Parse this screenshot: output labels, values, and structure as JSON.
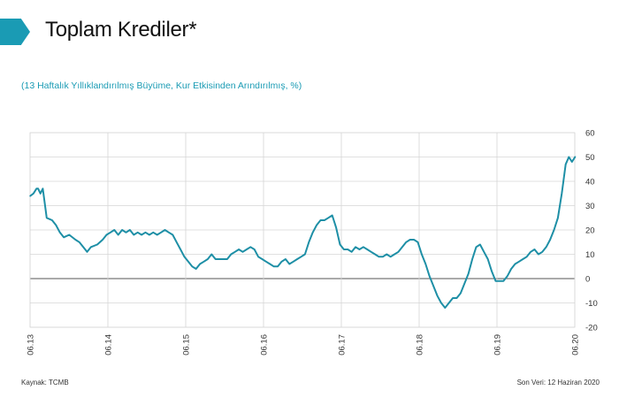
{
  "header": {
    "title": "Toplam Krediler*",
    "subtitle": "(13 Haftalık Yıllıklandırılmış Büyüme, Kur Etkisinden Arındırılmış, %)"
  },
  "footer": {
    "source": "Kaynak: TCMB",
    "last_data": "Son Veri: 12 Haziran 2020"
  },
  "colors": {
    "accent": "#1a9bb4",
    "line": "#1e8fa6",
    "grid": "#d6d6d6"
  },
  "chart_data": {
    "type": "line",
    "title": "Toplam Krediler*",
    "subtitle": "(13 Haftalık Yıllıklandırılmış Büyüme, Kur Etkisinden Arındırılmış, %)",
    "xlabel": "",
    "ylabel": "",
    "ylim": [
      -20,
      60
    ],
    "yticks": [
      60,
      50,
      40,
      30,
      20,
      10,
      0,
      -10,
      -20
    ],
    "y_axis_position": "right",
    "xlim": [
      2013.4167,
      2020.4167
    ],
    "xticks": [
      {
        "label": "06.13",
        "x": 2013.4167
      },
      {
        "label": "06.14",
        "x": 2014.4167
      },
      {
        "label": "06.15",
        "x": 2015.4167
      },
      {
        "label": "06.16",
        "x": 2016.4167
      },
      {
        "label": "06.17",
        "x": 2017.4167
      },
      {
        "label": "06.18",
        "x": 2018.4167
      },
      {
        "label": "06.19",
        "x": 2019.4167
      },
      {
        "label": "06.20",
        "x": 2020.4167
      }
    ],
    "grid": true,
    "legend": "none",
    "series": [
      {
        "name": "Toplam Krediler",
        "x": [
          2013.42,
          2013.46,
          2013.5,
          2013.52,
          2013.55,
          2013.58,
          2013.63,
          2013.7,
          2013.75,
          2013.8,
          2013.85,
          2013.92,
          2014.0,
          2014.05,
          2014.1,
          2014.15,
          2014.2,
          2014.28,
          2014.35,
          2014.4,
          2014.45,
          2014.5,
          2014.55,
          2014.6,
          2014.65,
          2014.7,
          2014.75,
          2014.8,
          2014.85,
          2014.9,
          2014.95,
          2015.0,
          2015.05,
          2015.1,
          2015.15,
          2015.2,
          2015.25,
          2015.3,
          2015.35,
          2015.4,
          2015.45,
          2015.5,
          2015.55,
          2015.6,
          2015.65,
          2015.7,
          2015.75,
          2015.8,
          2015.85,
          2015.9,
          2015.95,
          2016.0,
          2016.05,
          2016.1,
          2016.15,
          2016.2,
          2016.25,
          2016.3,
          2016.35,
          2016.4,
          2016.45,
          2016.5,
          2016.55,
          2016.6,
          2016.65,
          2016.7,
          2016.75,
          2016.8,
          2016.85,
          2016.9,
          2016.95,
          2017.0,
          2017.05,
          2017.1,
          2017.15,
          2017.2,
          2017.25,
          2017.3,
          2017.35,
          2017.4,
          2017.45,
          2017.5,
          2017.55,
          2017.6,
          2017.65,
          2017.7,
          2017.75,
          2017.8,
          2017.85,
          2017.9,
          2017.95,
          2018.0,
          2018.05,
          2018.1,
          2018.15,
          2018.2,
          2018.25,
          2018.3,
          2018.35,
          2018.4,
          2018.45,
          2018.5,
          2018.55,
          2018.6,
          2018.65,
          2018.7,
          2018.75,
          2018.8,
          2018.85,
          2018.9,
          2018.95,
          2019.0,
          2019.05,
          2019.1,
          2019.15,
          2019.2,
          2019.25,
          2019.3,
          2019.35,
          2019.4,
          2019.45,
          2019.5,
          2019.55,
          2019.6,
          2019.65,
          2019.7,
          2019.75,
          2019.8,
          2019.85,
          2019.9,
          2019.95,
          2020.0,
          2020.05,
          2020.1,
          2020.15,
          2020.2,
          2020.25,
          2020.3,
          2020.34,
          2020.38,
          2020.42
        ],
        "values": [
          34,
          35,
          37,
          37,
          35,
          37,
          25,
          24,
          22,
          19,
          17,
          18,
          16,
          15,
          13,
          11,
          13,
          14,
          16,
          18,
          19,
          20,
          18,
          20,
          19,
          20,
          18,
          19,
          18,
          19,
          18,
          19,
          18,
          19,
          20,
          19,
          18,
          15,
          12,
          9,
          7,
          5,
          4,
          6,
          7,
          8,
          10,
          8,
          8,
          8,
          8,
          10,
          11,
          12,
          11,
          12,
          13,
          12,
          9,
          8,
          7,
          6,
          5,
          5,
          7,
          8,
          6,
          7,
          8,
          9,
          10,
          15,
          19,
          22,
          24,
          24,
          25,
          26,
          21,
          14,
          12,
          12,
          11,
          13,
          12,
          13,
          12,
          11,
          10,
          9,
          9,
          10,
          9,
          10,
          11,
          13,
          15,
          16,
          16,
          15,
          10,
          6,
          1,
          -3,
          -7,
          -10,
          -12,
          -10,
          -8,
          -8,
          -6,
          -2,
          2,
          8,
          13,
          14,
          11,
          8,
          3,
          -1,
          -1,
          -1,
          1,
          4,
          6,
          7,
          8,
          9,
          11,
          12,
          10,
          11,
          13,
          16,
          20,
          25,
          35,
          47,
          50,
          48,
          50
        ]
      }
    ]
  }
}
